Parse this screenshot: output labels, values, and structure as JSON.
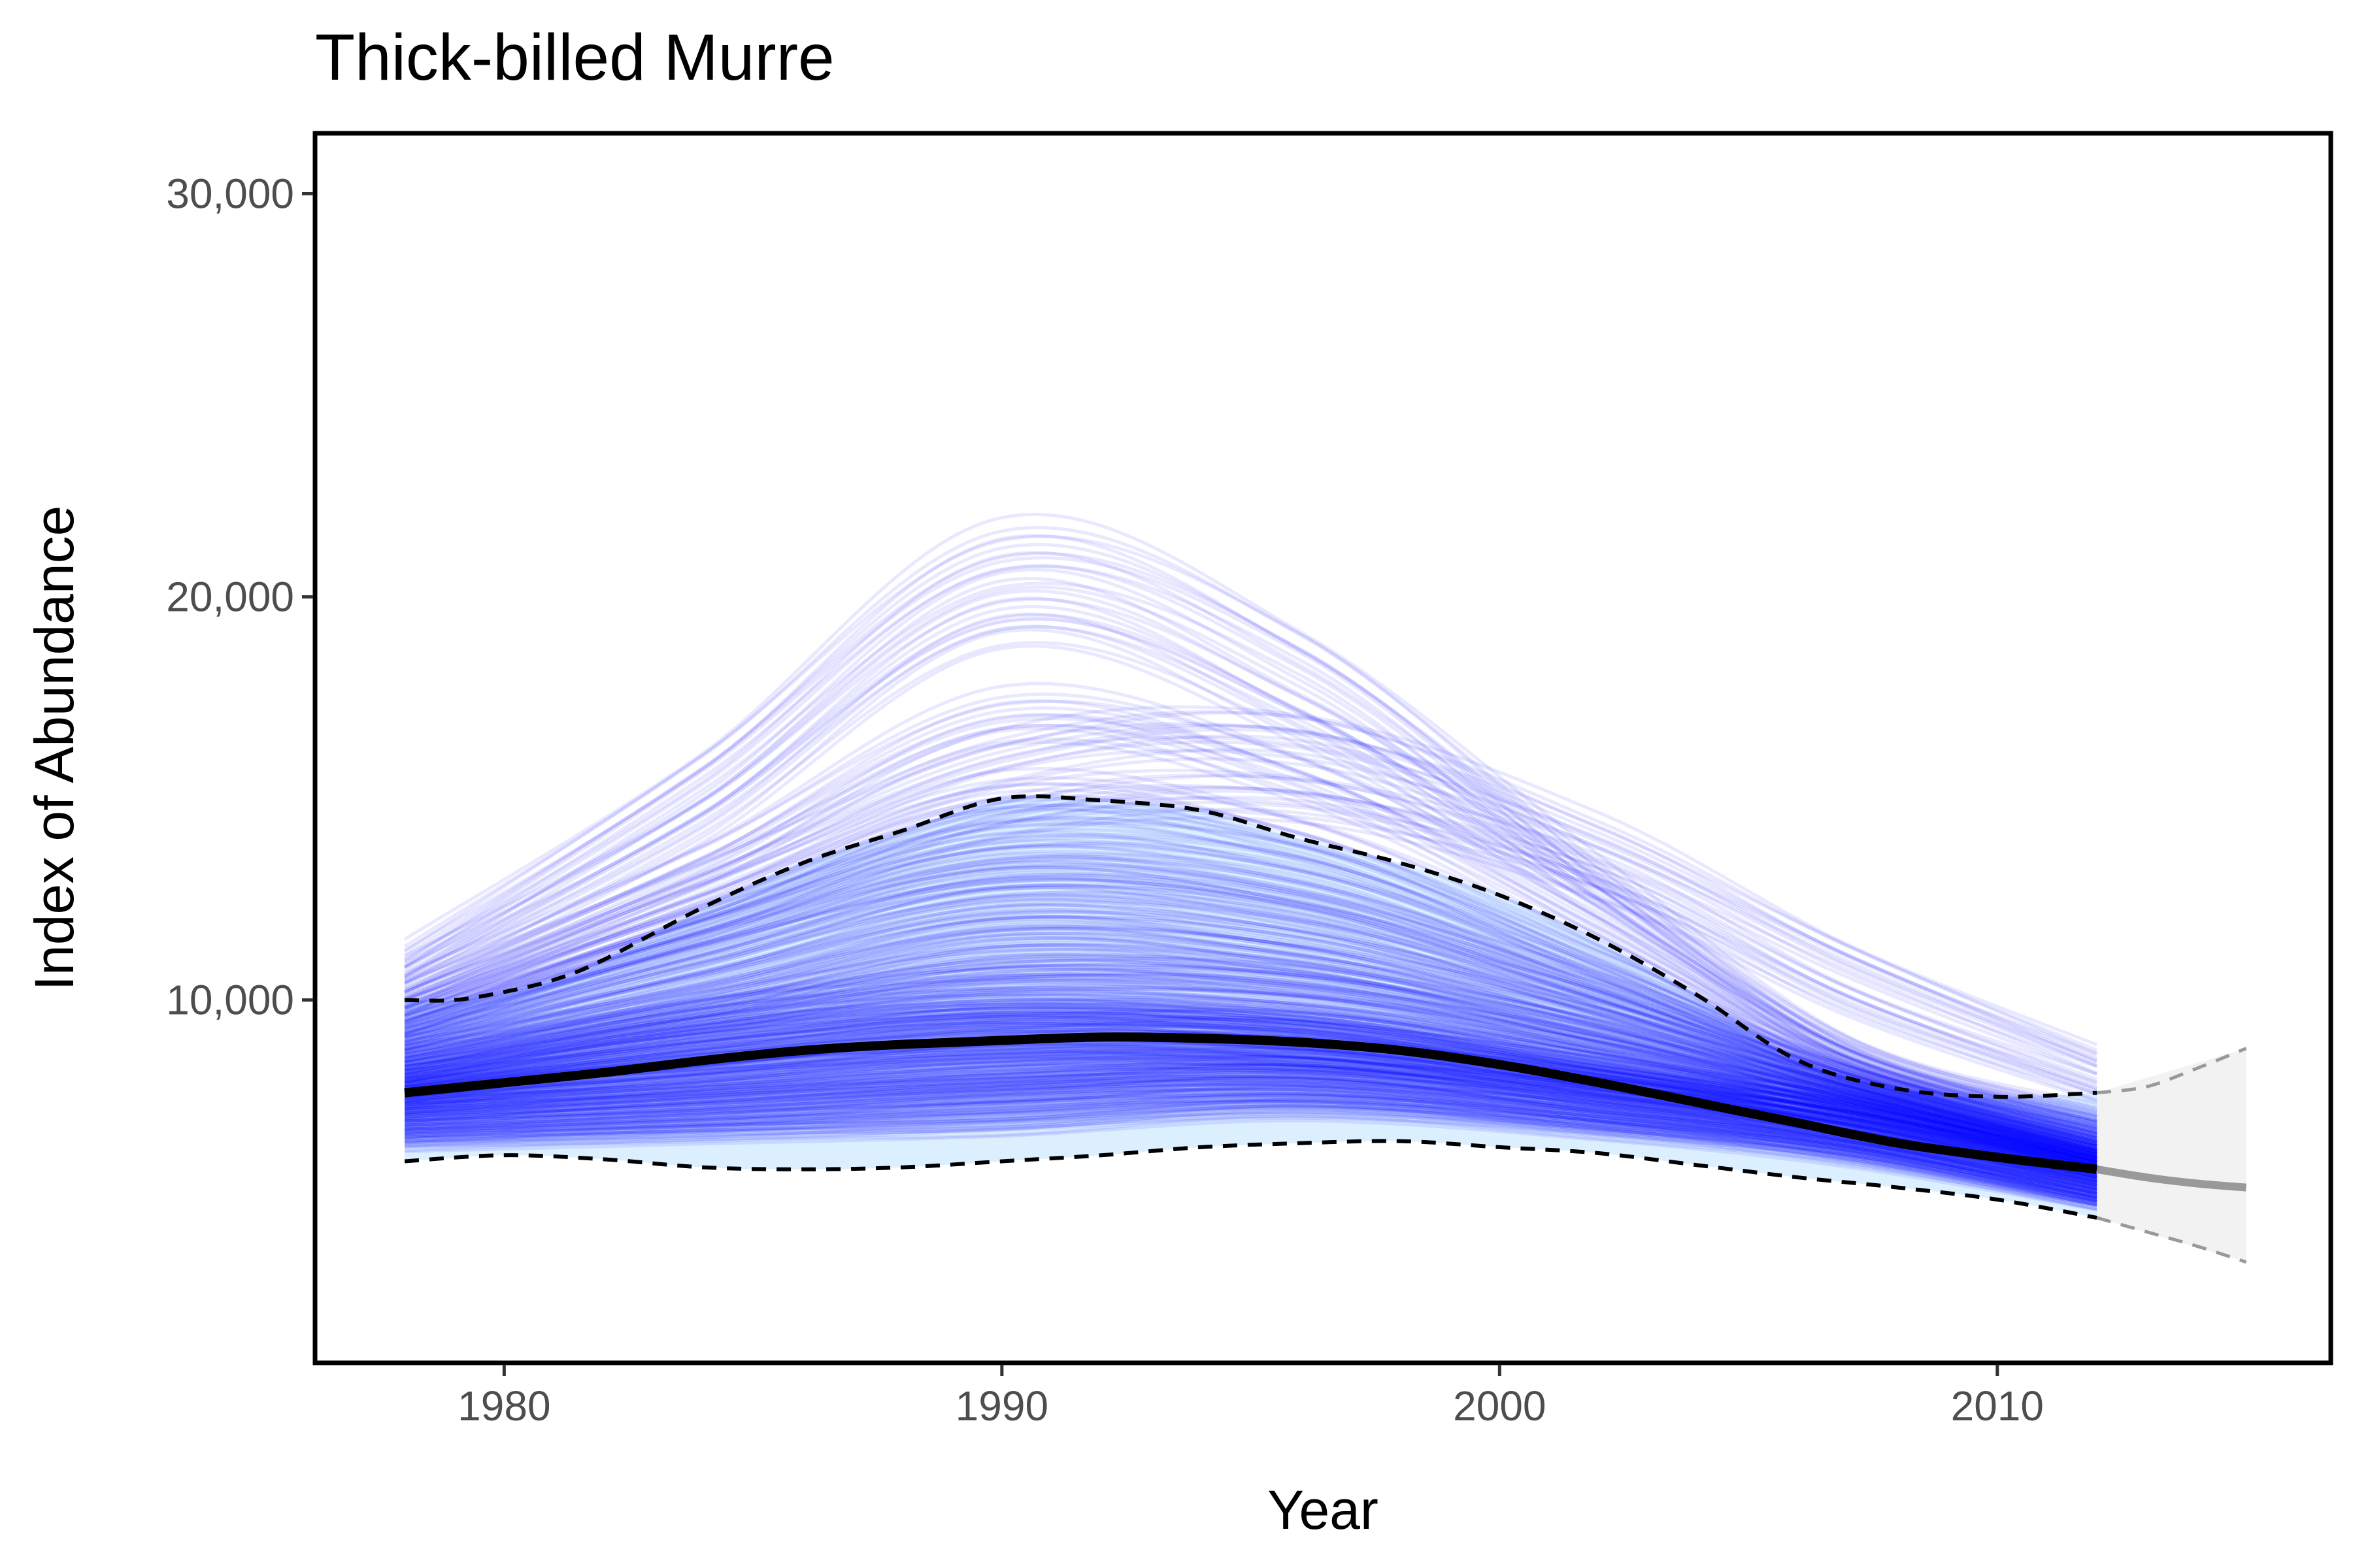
{
  "chart_data": {
    "type": "line",
    "title": "Thick-billed Murre",
    "xlabel": "Year",
    "ylabel": "Index of Abundance",
    "xlim": [
      1976.2,
      2016.7
    ],
    "ylim": [
      1000,
      31500
    ],
    "x_ticks": [
      1980,
      1990,
      2000,
      2010
    ],
    "y_ticks": [
      10000,
      20000,
      30000
    ],
    "x_tick_labels": [
      "1980",
      "1990",
      "2000",
      "2010"
    ],
    "y_tick_labels": [
      "10,000",
      "20,000",
      "30,000"
    ],
    "grid": false,
    "legend": "none",
    "colors": {
      "draws": "#0000ff",
      "ci_fill": "#dcefff",
      "median": "#000000",
      "projection_fill": "#f2f2f2",
      "projection_line": "#999999",
      "tick_label": "#4d4d4d"
    },
    "series": [
      {
        "role": "median",
        "style": "solid-thick",
        "x": [
          1978,
          1980,
          1982,
          1984,
          1986,
          1988,
          1990,
          1992,
          1994,
          1996,
          1998,
          2000,
          2002,
          2004,
          2006,
          2008,
          2010,
          2012
        ],
        "values": [
          7700,
          7950,
          8200,
          8500,
          8750,
          8900,
          9000,
          9080,
          9050,
          8950,
          8750,
          8400,
          7950,
          7450,
          6950,
          6450,
          6100,
          5800
        ]
      },
      {
        "role": "upper-95",
        "style": "dashed",
        "x": [
          1978,
          1979,
          1980,
          1981,
          1982,
          1984,
          1986,
          1988,
          1990,
          1992,
          1994,
          1996,
          1998,
          2000,
          2002,
          2004,
          2006,
          2008,
          2010,
          2012
        ],
        "values": [
          10000,
          10000,
          10200,
          10500,
          11000,
          12300,
          13400,
          14200,
          15000,
          14950,
          14700,
          14000,
          13400,
          12600,
          11500,
          10100,
          8500,
          7800,
          7600,
          7700
        ]
      },
      {
        "role": "lower-95",
        "style": "dashed",
        "x": [
          1978,
          1980,
          1982,
          1984,
          1986,
          1988,
          1990,
          1992,
          1994,
          1996,
          1998,
          2000,
          2002,
          2004,
          2006,
          2008,
          2010,
          2012
        ],
        "values": [
          6000,
          6150,
          6050,
          5850,
          5800,
          5850,
          6000,
          6150,
          6350,
          6450,
          6500,
          6350,
          6200,
          5900,
          5600,
          5350,
          5050,
          4600
        ]
      },
      {
        "role": "projection-median",
        "style": "solid-grey",
        "x": [
          2012,
          2013,
          2014,
          2015
        ],
        "values": [
          5800,
          5600,
          5450,
          5350
        ]
      },
      {
        "role": "projection-upper",
        "style": "dashed-grey",
        "x": [
          2012,
          2013,
          2014,
          2015
        ],
        "values": [
          7700,
          7850,
          8300,
          8800
        ]
      },
      {
        "role": "projection-lower",
        "style": "dashed-grey",
        "x": [
          2012,
          2013,
          2014,
          2015
        ],
        "values": [
          4600,
          4250,
          3900,
          3500
        ]
      }
    ],
    "draws": {
      "description_of_visual": "several hundred semi-transparent blue posterior trajectory lines, 1978–2012",
      "x": [
        1978,
        1984,
        1990,
        1996,
        2002,
        2007,
        2012
      ],
      "samples": [
        [
          7700,
          8500,
          9000,
          8950,
          7950,
          7200,
          5800
        ],
        [
          8200,
          9300,
          10000,
          9800,
          8700,
          7500,
          6000
        ],
        [
          7300,
          7800,
          8200,
          8300,
          7500,
          6700,
          5500
        ],
        [
          8700,
          10000,
          11500,
          11000,
          9500,
          7800,
          6200
        ],
        [
          6900,
          7200,
          7600,
          7800,
          7100,
          6400,
          5200
        ],
        [
          9200,
          11300,
          13000,
          12300,
          10200,
          8100,
          6500
        ],
        [
          7500,
          8100,
          8700,
          8500,
          7700,
          6900,
          5700
        ],
        [
          8000,
          9000,
          9600,
          9200,
          8200,
          7300,
          6100
        ],
        [
          6500,
          6700,
          6900,
          7300,
          6800,
          6100,
          5000
        ],
        [
          9800,
          12500,
          15000,
          14000,
          11000,
          8300,
          6700
        ],
        [
          7900,
          8600,
          9300,
          9400,
          8300,
          7100,
          5900
        ],
        [
          8400,
          9500,
          10600,
          10300,
          9000,
          7600,
          6100
        ],
        [
          7100,
          7500,
          7900,
          8100,
          7400,
          6600,
          5400
        ],
        [
          10200,
          13400,
          17000,
          15500,
          11800,
          8500,
          6800
        ],
        [
          7600,
          8300,
          8900,
          8700,
          7900,
          7000,
          5800
        ],
        [
          8900,
          10600,
          12200,
          11600,
          9800,
          7900,
          6300
        ],
        [
          6700,
          7000,
          7300,
          7600,
          7000,
          6300,
          5100
        ],
        [
          9500,
          11900,
          14000,
          13400,
          10700,
          8200,
          6600
        ],
        [
          8100,
          9200,
          9800,
          9500,
          8400,
          7400,
          6000
        ],
        [
          7400,
          7900,
          8500,
          8600,
          7800,
          6800,
          5600
        ],
        [
          10600,
          14500,
          19500,
          17000,
          12500,
          8700,
          7000
        ],
        [
          7800,
          8700,
          9400,
          9100,
          8100,
          7200,
          5900
        ],
        [
          8600,
          9900,
          11000,
          10600,
          9100,
          7700,
          6200
        ],
        [
          7000,
          7400,
          7800,
          8000,
          7300,
          6500,
          5300
        ],
        [
          9100,
          11000,
          12800,
          12200,
          10000,
          8000,
          6400
        ],
        [
          6800,
          7100,
          7500,
          7700,
          7100,
          6300,
          5100
        ],
        [
          8300,
          9700,
          10300,
          10000,
          8800,
          7500,
          6100
        ],
        [
          11000,
          15600,
          21000,
          18500,
          13000,
          8800,
          7100
        ],
        [
          7600,
          8400,
          8800,
          8800,
          8000,
          7000,
          5700
        ],
        [
          8800,
          10300,
          11800,
          11200,
          9500,
          7800,
          6300
        ],
        [
          7200,
          7700,
          8100,
          8200,
          7600,
          6700,
          5500
        ],
        [
          9300,
          11600,
          13500,
          12800,
          10400,
          8100,
          6500
        ],
        [
          8000,
          8900,
          9500,
          9300,
          8300,
          7300,
          6000
        ],
        [
          6600,
          6800,
          7100,
          7400,
          6900,
          6200,
          5000
        ],
        [
          10000,
          13000,
          16000,
          16500,
          14000,
          11000,
          8500
        ],
        [
          7700,
          8200,
          8600,
          8700,
          7900,
          7000,
          5800
        ],
        [
          8500,
          9600,
          10700,
          10500,
          9100,
          7600,
          6100
        ],
        [
          7300,
          7600,
          8000,
          8300,
          7500,
          6700,
          5400
        ],
        [
          9600,
          12000,
          14600,
          15000,
          13000,
          10000,
          7800
        ],
        [
          8100,
          9100,
          9700,
          9400,
          8400,
          7400,
          6000
        ]
      ]
    },
    "projection": {
      "x": [
        2012,
        2015
      ],
      "fill_lower": [
        4600,
        3500
      ],
      "fill_upper": [
        7700,
        8800
      ]
    }
  }
}
